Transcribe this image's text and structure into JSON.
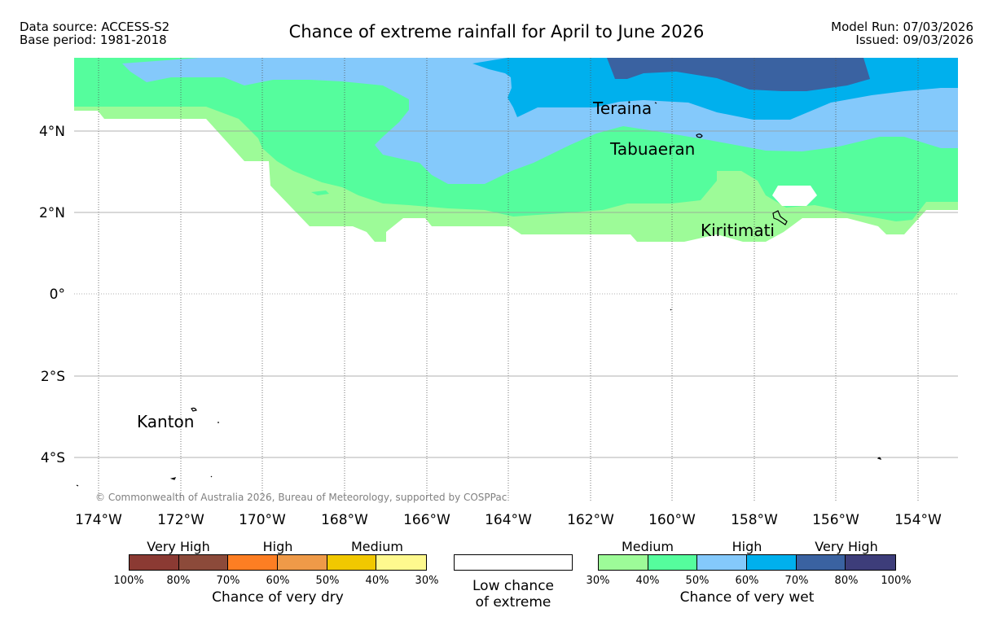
{
  "header": {
    "source_line": "Data source: ACCESS-S2",
    "base_line": "Base period: 1981-2018",
    "title": "Chance of extreme rainfall for April to June 2026",
    "model_run": "Model Run: 07/03/2026",
    "issued": "Issued: 09/03/2026"
  },
  "map": {
    "lon_labels": [
      "174°W",
      "172°W",
      "170°W",
      "168°W",
      "166°W",
      "164°W",
      "162°W",
      "160°W",
      "158°W",
      "156°W",
      "154°W"
    ],
    "lat_labels": [
      "4°N",
      "2°N",
      "0°",
      "2°S",
      "4°S"
    ],
    "places": [
      "Teraina",
      "Tabuaeran",
      "Kiritimati",
      "Kanton"
    ],
    "copyright": "© Commonwealth of Australia 2026, Bureau of Meteorology, supported by COSPPac",
    "fill_colors": {
      "medium_wet": "#9dfb98",
      "medium2_wet": "#55fd9d",
      "high_wet": "#84c9fb",
      "high2_wet": "#00b0ed",
      "very_high_wet": "#3a62a1"
    }
  },
  "legend": {
    "dry": {
      "groups": [
        "Very High",
        "High",
        "Medium"
      ],
      "ticks": [
        "100%",
        "80%",
        "70%",
        "60%",
        "50%",
        "40%",
        "30%"
      ],
      "colors": [
        "#8b3a33",
        "#8c4a3a",
        "#fd7e23",
        "#ef9a48",
        "#f1c800",
        "#fef98e"
      ],
      "title": "Chance of very dry"
    },
    "low": {
      "title_line1": "Low chance",
      "title_line2": "of extreme"
    },
    "wet": {
      "groups": [
        "Medium",
        "High",
        "Very High"
      ],
      "ticks": [
        "30%",
        "40%",
        "50%",
        "60%",
        "70%",
        "80%",
        "100%"
      ],
      "colors": [
        "#9dfb98",
        "#55fd9d",
        "#84c9fb",
        "#00b0ed",
        "#3a62a1",
        "#3d3d7a"
      ],
      "title": "Chance of very wet"
    }
  }
}
